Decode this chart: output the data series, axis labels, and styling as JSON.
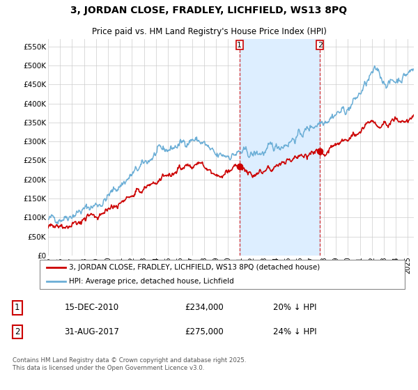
{
  "title": "3, JORDAN CLOSE, FRADLEY, LICHFIELD, WS13 8PQ",
  "subtitle": "Price paid vs. HM Land Registry's House Price Index (HPI)",
  "ytick_vals": [
    0,
    50000,
    100000,
    150000,
    200000,
    250000,
    300000,
    350000,
    400000,
    450000,
    500000,
    550000
  ],
  "ylim": [
    0,
    570000
  ],
  "xlim_start": 1995,
  "xlim_end": 2025.5,
  "purchase1": {
    "date": 2010.96,
    "price": 234000,
    "label": "1",
    "text": "15-DEC-2010",
    "amount": "£234,000",
    "pct": "20% ↓ HPI"
  },
  "purchase2": {
    "date": 2017.67,
    "price": 275000,
    "label": "2",
    "text": "31-AUG-2017",
    "amount": "£275,000",
    "pct": "24% ↓ HPI"
  },
  "hpi_color": "#6baed6",
  "price_color": "#cc0000",
  "shade_color": "#ddeeff",
  "grid_color": "#cccccc",
  "legend_label_price": "3, JORDAN CLOSE, FRADLEY, LICHFIELD, WS13 8PQ (detached house)",
  "legend_label_hpi": "HPI: Average price, detached house, Lichfield",
  "footer": "Contains HM Land Registry data © Crown copyright and database right 2025.\nThis data is licensed under the Open Government Licence v3.0."
}
